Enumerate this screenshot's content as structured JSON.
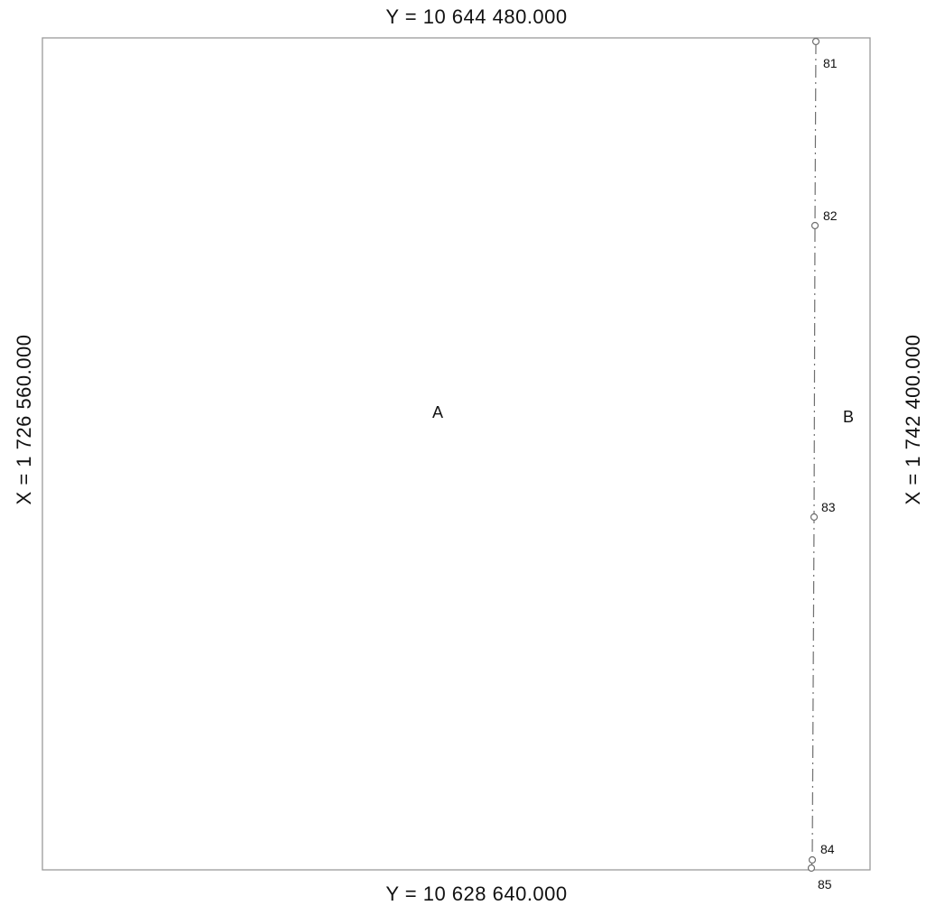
{
  "coordinates": {
    "top": "Y =   10  644   480.000",
    "bottom": "Y =   10  628   640.000",
    "left": "X =   1   726   560.000",
    "right": "X =   1   742   400.000"
  },
  "areas": [
    {
      "id": "A",
      "label": "A"
    },
    {
      "id": "B",
      "label": "B"
    }
  ],
  "boundary_points": [
    {
      "id": "81",
      "label": "81"
    },
    {
      "id": "82",
      "label": "82"
    },
    {
      "id": "83",
      "label": "83"
    },
    {
      "id": "84",
      "label": "84"
    },
    {
      "id": "85",
      "label": "85"
    }
  ],
  "colors": {
    "frame": "#9a9a9a",
    "boundary_line": "#6f6f6f",
    "text": "#111111"
  }
}
